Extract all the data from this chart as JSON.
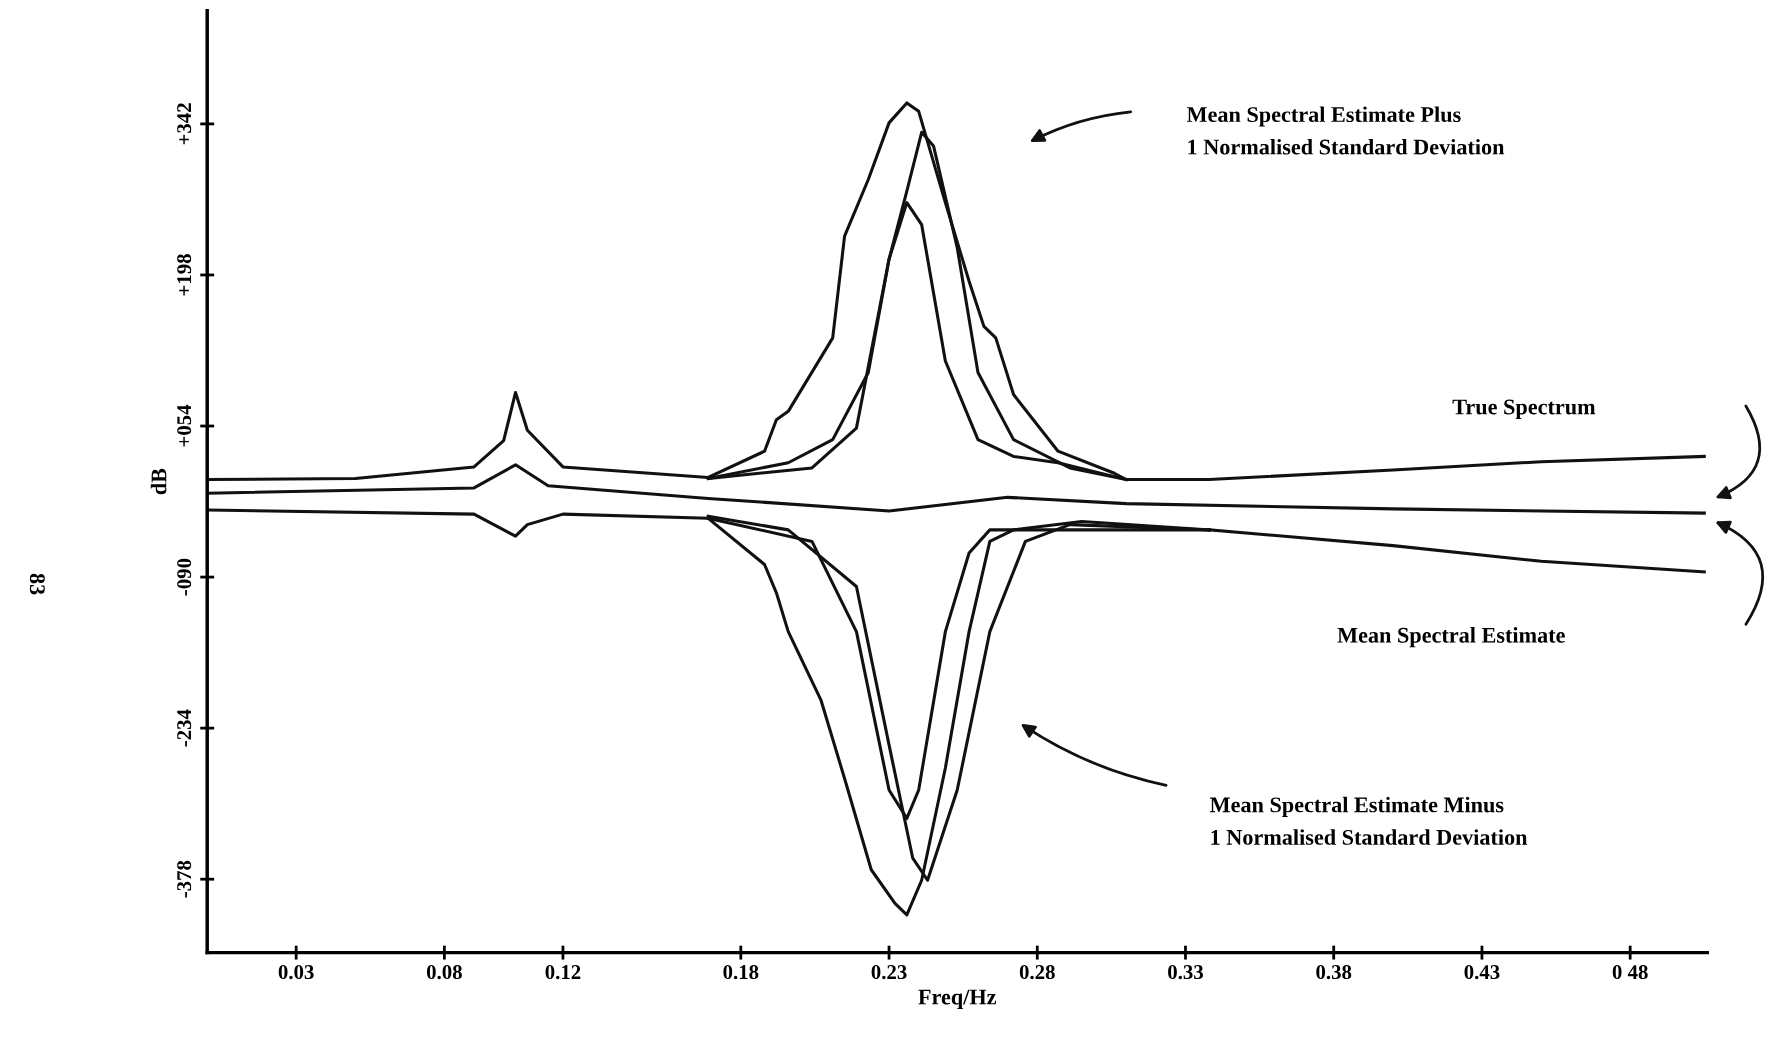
{
  "chart_data": {
    "type": "line",
    "xlabel": "Freq/Hz",
    "ylabel": "dB",
    "xlim": [
      0,
      0.506
    ],
    "ylim": [
      -448,
      450
    ],
    "xticks": [
      {
        "value": 0.03,
        "label": "0.03"
      },
      {
        "value": 0.08,
        "label": "0.08"
      },
      0.12,
      {
        "value": 0.18,
        "label": "0.18"
      },
      {
        "value": 0.23,
        "label": "0.23"
      },
      {
        "value": 0.28,
        "label": "0.28"
      },
      {
        "value": 0.33,
        "label": "0.33"
      },
      {
        "value": 0.38,
        "label": "0.38"
      },
      {
        "value": 0.43,
        "label": "0.43"
      },
      {
        "value": 0.48,
        "label": "0 48"
      }
    ],
    "yticks": [
      {
        "value": 342,
        "label": "+342"
      },
      {
        "value": 198,
        "label": "+198"
      },
      {
        "value": 54,
        "label": "+054"
      },
      {
        "value": -90,
        "label": "-090"
      },
      {
        "value": -234,
        "label": "-234"
      },
      {
        "value": -378,
        "label": "-378"
      }
    ],
    "grid": false,
    "marker": "none",
    "line_style": "solid",
    "series": [
      {
        "color": "#111111",
        "x": [
          0,
          0.05,
          0.09,
          0.1,
          0.104,
          0.108,
          0.12,
          0.169,
          0.24,
          0.31,
          0.338,
          0.4,
          0.45,
          0.505
        ],
        "values": [
          3,
          4,
          15,
          40,
          86,
          50,
          15,
          5,
          null,
          3,
          3,
          12,
          20,
          25
        ]
      },
      {
        "color": "#111111",
        "x": [
          0,
          0.09,
          0.104,
          0.115,
          0.169,
          0.23,
          0.27,
          0.31,
          0.4,
          0.505
        ],
        "values": [
          -10,
          -5,
          17,
          -3,
          -15,
          -27,
          -14,
          -20,
          -25,
          -29
        ]
      },
      {
        "color": "#111111",
        "x": [
          0,
          0.09,
          0.1,
          0.104,
          0.108,
          0.12,
          0.169,
          0.24,
          0.338,
          0.4,
          0.45,
          0.505
        ],
        "values": [
          -26,
          -30,
          -45,
          -51,
          -40,
          -30,
          -34,
          null,
          -45,
          -60,
          -75,
          -85
        ]
      },
      {
        "color": "#111111",
        "x": [
          0.169,
          0.188,
          0.192,
          0.196,
          0.211,
          0.215,
          0.223,
          0.23,
          0.236,
          0.24,
          0.249,
          0.257,
          0.262,
          0.266,
          0.272,
          0.287,
          0.306,
          0.31
        ],
        "values": [
          5,
          30,
          60,
          68,
          138,
          235,
          289,
          343,
          362,
          354,
          267,
          192,
          149,
          138,
          84,
          30,
          9,
          3
        ]
      },
      {
        "color": "#111111",
        "x": [
          0.169,
          0.196,
          0.211,
          0.223,
          0.23,
          0.236,
          0.241,
          0.245,
          0.253,
          0.26,
          0.272,
          0.291,
          0.31
        ],
        "values": [
          4,
          19,
          41,
          105,
          213,
          278,
          334,
          321,
          224,
          105,
          41,
          14,
          3
        ]
      },
      {
        "color": "#111111",
        "x": [
          0.169,
          0.204,
          0.219,
          0.23,
          0.236,
          0.241,
          0.249,
          0.26,
          0.272,
          0.287,
          0.31
        ],
        "values": [
          4,
          14,
          52,
          213,
          267,
          246,
          116,
          41,
          25,
          19,
          3
        ]
      },
      {
        "color": "#111111",
        "x": [
          0.169,
          0.188,
          0.192,
          0.196,
          0.207,
          0.215,
          0.224,
          0.232,
          0.236,
          0.241,
          0.249,
          0.257,
          0.264,
          0.272,
          0.295,
          0.338
        ],
        "values": [
          -34,
          -78,
          -105,
          -142,
          -207,
          -282,
          -369,
          -401,
          -412,
          -379,
          -272,
          -142,
          -56,
          -45,
          -37,
          -45
        ]
      },
      {
        "color": "#111111",
        "x": [
          0.169,
          0.196,
          0.219,
          0.23,
          0.238,
          0.243,
          0.253,
          0.264,
          0.276,
          0.291,
          0.338
        ],
        "values": [
          -32,
          -45,
          -99,
          -250,
          -358,
          -379,
          -293,
          -142,
          -56,
          -40,
          -45
        ]
      },
      {
        "color": "#111111",
        "x": [
          0.169,
          0.204,
          0.219,
          0.23,
          0.236,
          0.24,
          0.249,
          0.257,
          0.264,
          0.338
        ],
        "values": [
          -34,
          -56,
          -142,
          -293,
          -320,
          -293,
          -142,
          -67,
          -45,
          -45
        ]
      }
    ],
    "annotations": [
      "Mean Spectral Estimate Plus\n1 Normalised Standard Deviation",
      "Mean Spectral Estimate Minus\n1 Normalised Standard Deviation",
      "True Spectrum",
      "Mean Spectral Estimate",
      "83"
    ]
  }
}
